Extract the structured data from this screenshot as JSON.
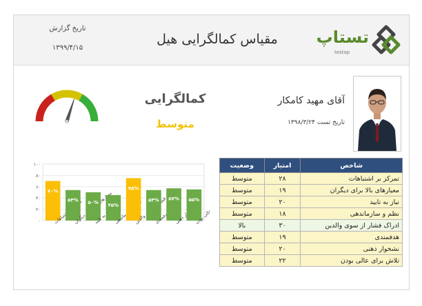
{
  "header": {
    "report_date_label": "تاریخ گزارش",
    "report_date_value": "۱۳۹۹/۴/۱۵",
    "title": "مقیاس کمالگرایی هیل",
    "logo_text": "تستاپ",
    "logo_subtext": "testop"
  },
  "profile": {
    "name": "آقای مهید کامکار",
    "test_date": "تاریخ تست ۱۳۹۸/۳/۲۴"
  },
  "result": {
    "trait": "کمالگرایی",
    "level": "متوسط",
    "gauge_value": 0.6,
    "gauge_colors": [
      "#c9211e",
      "#d4c200",
      "#3aae3a"
    ],
    "level_color": "#f2c20b"
  },
  "table": {
    "headers": {
      "name": "شاخص",
      "score": "امتیاز",
      "status": "وضعیت"
    },
    "rows": [
      {
        "name": "تمرکز بر اشتباهات",
        "score": "۲۸",
        "status": "متوسط"
      },
      {
        "name": "معیارهای بالا برای دیگران",
        "score": "۱۹",
        "status": "متوسط"
      },
      {
        "name": "نیاز به تایید",
        "score": "۲۰",
        "status": "متوسط"
      },
      {
        "name": "نظم و سازماندهی",
        "score": "۱۸",
        "status": "متوسط"
      },
      {
        "name": "ادراک فشار از سوی والدین",
        "score": "۳۰",
        "status": "بالا"
      },
      {
        "name": "هدفمندی",
        "score": "۱۹",
        "status": "متوسط"
      },
      {
        "name": "نشخوار ذهنی",
        "score": "۲۰",
        "status": "متوسط"
      },
      {
        "name": "تلاش برای عالی بودن",
        "score": "۲۲",
        "status": "متوسط"
      }
    ]
  },
  "chart_data": {
    "type": "bar",
    "categories": [
      "تمرکز بر اشتباهات",
      "معیارهای بالا برای دیگران",
      "نیاز به تایید",
      "نظم و سازماندهی",
      "ادراک فشار از سوی والدین",
      "هدفمندی",
      "نشخوار ذهنی",
      "تلاش برای عالی بودن"
    ],
    "values": [
      70,
      54,
      50,
      45,
      75,
      54,
      57,
      55
    ],
    "data_labels": [
      "۷۰%",
      "۵۴%",
      "۵۰%",
      "۴۵%",
      "۷۵%",
      "۵۴%",
      "۵۷%",
      "۵۵%"
    ],
    "colors": [
      "#fbbf07",
      "#6cab47",
      "#6cab47",
      "#6cab47",
      "#fbbf07",
      "#6cab47",
      "#6cab47",
      "#6cab47"
    ],
    "y_ticks": [
      "۰",
      "۲۰",
      "۴۰",
      "۶۰",
      "۸۰",
      "۱۰۰"
    ],
    "ylim": [
      0,
      100
    ],
    "grid": true
  }
}
